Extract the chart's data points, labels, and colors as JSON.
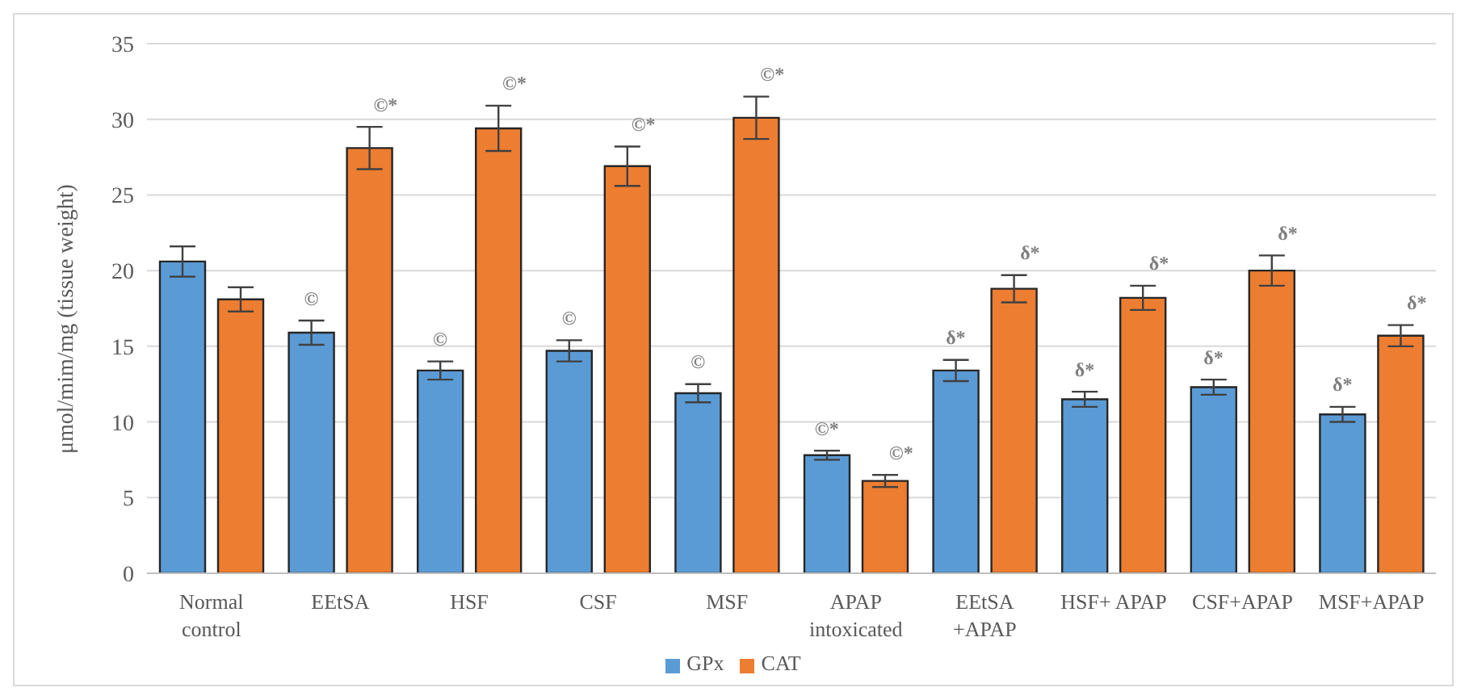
{
  "chart_data": {
    "type": "bar",
    "ylabel": "μmol/mim/mg (tissue weight)",
    "categories": [
      "Normal control",
      "EEtSA",
      "HSF",
      "CSF",
      "MSF",
      "APAP intoxicated",
      "EEtSA +APAP",
      "HSF+ APAP",
      "CSF+APAP",
      "MSF+APAP"
    ],
    "series": [
      {
        "name": "GPx",
        "color": "#5b9bd5",
        "values": [
          20.6,
          15.9,
          13.4,
          14.7,
          11.9,
          7.8,
          13.4,
          11.5,
          12.3,
          10.5
        ],
        "errors": [
          1.0,
          0.8,
          0.6,
          0.7,
          0.6,
          0.3,
          0.7,
          0.5,
          0.5,
          0.5
        ]
      },
      {
        "name": "CAT",
        "color": "#ed7d31",
        "values": [
          18.1,
          28.1,
          29.4,
          26.9,
          30.1,
          6.1,
          18.8,
          18.2,
          20.0,
          15.7
        ],
        "errors": [
          0.8,
          1.4,
          1.5,
          1.3,
          1.4,
          0.4,
          0.9,
          0.8,
          1.0,
          0.7
        ]
      }
    ],
    "ylim": [
      0,
      35
    ],
    "yticks": [
      0,
      5,
      10,
      15,
      20,
      25,
      30,
      35
    ],
    "grid": "y",
    "legend": "bottom",
    "annotations": [
      {
        "text": "©",
        "x": "EEtSA",
        "y": 15.9
      },
      {
        "text": "©*",
        "x": "EEtSA",
        "y": 28.1
      },
      {
        "text": "©",
        "x": "HSF",
        "y": 13.4
      },
      {
        "text": "©*",
        "x": "HSF",
        "y": 29.4
      },
      {
        "text": "©",
        "x": "CSF",
        "y": 14.7
      },
      {
        "text": "©*",
        "x": "CSF",
        "y": 26.9
      },
      {
        "text": "©",
        "x": "MSF",
        "y": 11.9
      },
      {
        "text": "©*",
        "x": "MSF",
        "y": 30.1
      },
      {
        "text": "©*",
        "x": "APAP intoxicated",
        "y": 7.8
      },
      {
        "text": "©*",
        "x": "APAP intoxicated",
        "y": 6.1
      },
      {
        "text": "δ*",
        "x": "EEtSA +APAP",
        "y": 13.4
      },
      {
        "text": "δ*",
        "x": "EEtSA +APAP",
        "y": 18.8
      },
      {
        "text": "δ*",
        "x": "HSF+ APAP",
        "y": 11.5
      },
      {
        "text": "δ*",
        "x": "HSF+ APAP",
        "y": 18.2
      },
      {
        "text": "δ*",
        "x": "CSF+APAP",
        "y": 12.3
      },
      {
        "text": "δ*",
        "x": "CSF+APAP",
        "y": 20.0
      },
      {
        "text": "δ*",
        "x": "MSF+APAP",
        "y": 10.5
      },
      {
        "text": "δ*",
        "x": "MSF+APAP",
        "y": 15.7
      }
    ]
  }
}
